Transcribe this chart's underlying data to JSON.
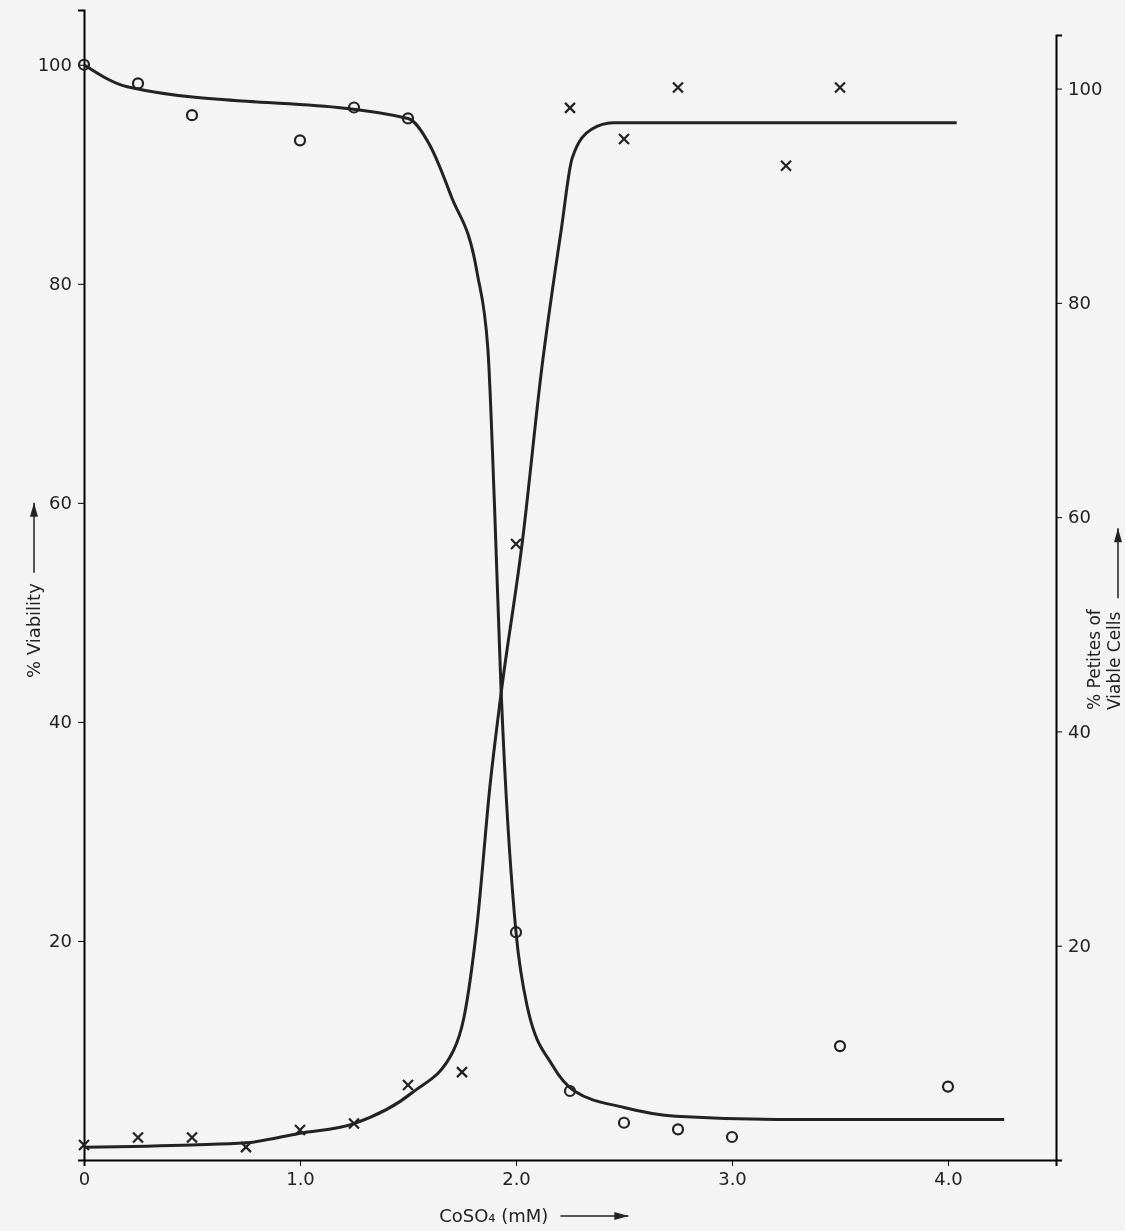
{
  "chart_data": {
    "type": "scatter",
    "xlabel": "CoSO₄ (mM)",
    "ylabel": "% Viability",
    "y2label": "% Petites of\nViable Cells",
    "xlim": [
      0,
      4.5
    ],
    "xticks": [
      0,
      {
        "value": 1,
        "label": "1.0"
      },
      {
        "value": 2,
        "label": "2.0"
      },
      {
        "value": 3,
        "label": "3.0"
      },
      {
        "value": 4,
        "label": "4.0"
      }
    ],
    "ylim": [
      0,
      105
    ],
    "yticks": [
      20,
      40,
      60,
      80,
      100
    ],
    "y2lim": [
      0,
      105
    ],
    "y2ticks": [
      20,
      40,
      60,
      80,
      100
    ],
    "series": [
      {
        "axis": "y",
        "marker": "circle",
        "color": "#222222",
        "x": [
          0,
          0.25,
          0.5,
          1.0,
          1.25,
          1.5,
          2.0,
          2.25,
          2.5,
          2.75,
          3.0,
          3.5,
          4.0
        ],
        "values": [
          100,
          98.3,
          95.4,
          93.1,
          96.1,
          95.1,
          20.8,
          6.3,
          3.4,
          2.8,
          2.1,
          10.4,
          6.7
        ]
      },
      {
        "type": "line",
        "axis": "y",
        "line_style": "solid",
        "color": "#222222",
        "x": [
          0,
          0.2,
          1.5,
          1.6,
          1.7,
          1.82,
          1.87,
          1.9,
          1.93,
          2.0,
          2.05,
          2.17,
          2.27,
          2.5,
          2.74,
          3.27,
          4.26
        ],
        "values": [
          100,
          98,
          95.1,
          92.7,
          88,
          81,
          74,
          60,
          43.4,
          20.8,
          14.2,
          8.6,
          6.3,
          4.8,
          4.0,
          3.7,
          3.7
        ]
      },
      {
        "axis": "y2",
        "marker": "cross",
        "color": "#222222",
        "x": [
          0,
          0.25,
          0.5,
          0.75,
          1.0,
          1.25,
          1.5,
          1.75,
          2.0,
          2.25,
          2.5,
          2.75,
          3.25,
          3.5
        ],
        "values": [
          1.4,
          2.1,
          2.1,
          1.2,
          2.8,
          3.4,
          7.0,
          8.2,
          57.5,
          98.2,
          95.3,
          100.1,
          92.8,
          100.1
        ]
      },
      {
        "type": "line",
        "axis": "y2",
        "line_style": "solid",
        "color": "#222222",
        "x": [
          0,
          0.5,
          0.75,
          1.0,
          1.25,
          1.52,
          1.71,
          1.76,
          1.82,
          1.88,
          1.93,
          2.03,
          2.12,
          2.21,
          2.26,
          2.35,
          2.45,
          4.04
        ],
        "values": [
          1.2,
          1.4,
          1.6,
          2.5,
          3.4,
          6.3,
          10.2,
          13.4,
          22,
          35,
          43.4,
          57.8,
          74,
          86.9,
          93.5,
          96.2,
          96.8,
          96.8
        ]
      }
    ]
  }
}
